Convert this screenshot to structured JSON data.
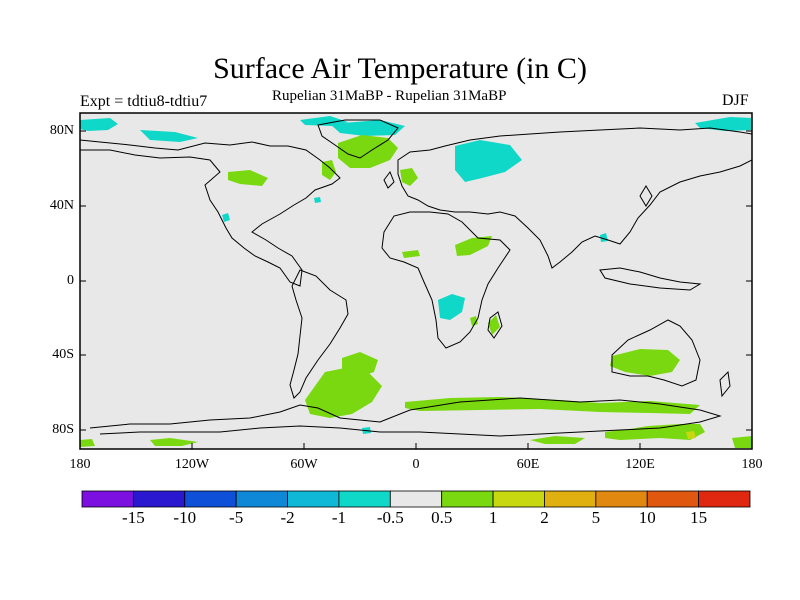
{
  "title": "Surface Air Temperature (in C)",
  "subtitle": "Rupelian  31MaBP - Rupelian  31MaBP",
  "experiment": "Expt = tdtiu8-tdtiu7",
  "season": "DJF",
  "lat_labels": [
    "80N",
    "40N",
    "0",
    "40S",
    "80S"
  ],
  "lon_labels": [
    "180",
    "120W",
    "60W",
    "0",
    "60E",
    "120E",
    "180"
  ],
  "colorbar": {
    "labels": [
      "-15",
      "-10",
      "-5",
      "-2",
      "-1",
      "-0.5",
      "0.5",
      "1",
      "2",
      "5",
      "10",
      "15"
    ],
    "colors": [
      "#7b10e0",
      "#2a18d0",
      "#0f50d8",
      "#0f88d8",
      "#10b8d8",
      "#10d8c8",
      "#e8e8e8",
      "#7ad810",
      "#c8d810",
      "#e0b010",
      "#e08810",
      "#e05810",
      "#e02810"
    ]
  },
  "colors": {
    "land_ocean_background": "#e8e8e8",
    "cool_anomaly": "#10d8c8",
    "warm_anomaly": "#7ad810",
    "hot_spot": "#c8d810"
  }
}
